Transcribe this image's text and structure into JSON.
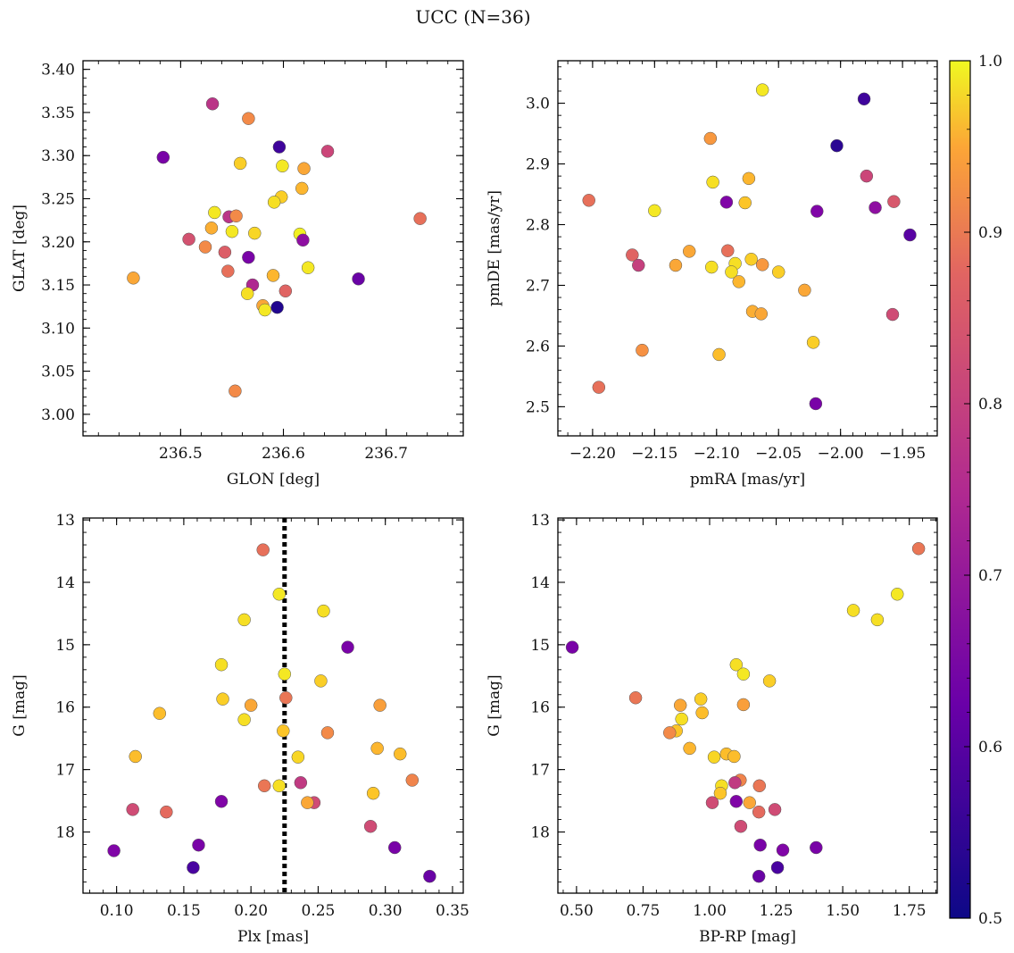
{
  "figure": {
    "title": "UCC (N=36)"
  },
  "colorbar": {
    "min": 0.5,
    "max": 1.0,
    "colormap": "plasma",
    "ticks": [
      "0.5",
      "0.6",
      "0.7",
      "0.8",
      "0.9",
      "1.0"
    ]
  },
  "colors": {
    "axis": "#000000",
    "marker_edge": "#555555",
    "vline": "#000000"
  },
  "chart_data": [
    {
      "type": "scatter",
      "xlabel": "GLON [deg]",
      "ylabel": "GLAT [deg]",
      "xlim": [
        236.405,
        236.775
      ],
      "ylim": [
        2.975,
        3.41
      ],
      "xticks": [
        236.5,
        236.6,
        236.7
      ],
      "xtick_labels": [
        "236.5",
        "236.6",
        "236.7"
      ],
      "yticks": [
        3.0,
        3.05,
        3.1,
        3.15,
        3.2,
        3.25,
        3.3,
        3.35,
        3.4
      ],
      "ytick_labels": [
        "3.00",
        "3.05",
        "3.10",
        "3.15",
        "3.20",
        "3.25",
        "3.30",
        "3.35",
        "3.40"
      ],
      "x_minor_step": 0.02,
      "y_minor_step": 0.01,
      "points": [
        {
          "x": 236.531,
          "y": 3.36,
          "c": 0.72
        },
        {
          "x": 236.566,
          "y": 3.343,
          "c": 0.86
        },
        {
          "x": 236.483,
          "y": 3.298,
          "c": 0.62
        },
        {
          "x": 236.596,
          "y": 3.31,
          "c": 0.55
        },
        {
          "x": 236.643,
          "y": 3.305,
          "c": 0.75
        },
        {
          "x": 236.558,
          "y": 3.291,
          "c": 0.95
        },
        {
          "x": 236.599,
          "y": 3.288,
          "c": 0.98
        },
        {
          "x": 236.62,
          "y": 3.285,
          "c": 0.9
        },
        {
          "x": 236.618,
          "y": 3.262,
          "c": 0.92
        },
        {
          "x": 236.598,
          "y": 3.252,
          "c": 0.95
        },
        {
          "x": 236.591,
          "y": 3.246,
          "c": 0.97
        },
        {
          "x": 236.533,
          "y": 3.234,
          "c": 0.98
        },
        {
          "x": 236.547,
          "y": 3.229,
          "c": 0.72
        },
        {
          "x": 236.554,
          "y": 3.23,
          "c": 0.86
        },
        {
          "x": 236.733,
          "y": 3.227,
          "c": 0.82
        },
        {
          "x": 236.53,
          "y": 3.216,
          "c": 0.91
        },
        {
          "x": 236.55,
          "y": 3.212,
          "c": 0.98
        },
        {
          "x": 236.572,
          "y": 3.21,
          "c": 0.96
        },
        {
          "x": 236.616,
          "y": 3.209,
          "c": 0.99
        },
        {
          "x": 236.508,
          "y": 3.203,
          "c": 0.77
        },
        {
          "x": 236.619,
          "y": 3.202,
          "c": 0.65
        },
        {
          "x": 236.524,
          "y": 3.194,
          "c": 0.86
        },
        {
          "x": 236.543,
          "y": 3.188,
          "c": 0.79
        },
        {
          "x": 236.566,
          "y": 3.182,
          "c": 0.62
        },
        {
          "x": 236.624,
          "y": 3.17,
          "c": 0.98
        },
        {
          "x": 236.546,
          "y": 3.166,
          "c": 0.82
        },
        {
          "x": 236.59,
          "y": 3.161,
          "c": 0.92
        },
        {
          "x": 236.454,
          "y": 3.158,
          "c": 0.9
        },
        {
          "x": 236.673,
          "y": 3.157,
          "c": 0.6
        },
        {
          "x": 236.57,
          "y": 3.15,
          "c": 0.7
        },
        {
          "x": 236.602,
          "y": 3.143,
          "c": 0.8
        },
        {
          "x": 236.565,
          "y": 3.14,
          "c": 0.97
        },
        {
          "x": 236.58,
          "y": 3.126,
          "c": 0.9
        },
        {
          "x": 236.594,
          "y": 3.124,
          "c": 0.52
        },
        {
          "x": 236.582,
          "y": 3.121,
          "c": 0.98
        },
        {
          "x": 236.553,
          "y": 3.027,
          "c": 0.86
        }
      ]
    },
    {
      "type": "scatter",
      "xlabel": "pmRA [mas/yr]",
      "ylabel": "pmDE [mas/yr]",
      "xlim": [
        -2.228,
        -1.922
      ],
      "ylim": [
        2.452,
        3.07
      ],
      "xticks": [
        -2.2,
        -2.15,
        -2.1,
        -2.05,
        -2.0,
        -1.95
      ],
      "xtick_labels": [
        "−2.20",
        "−2.15",
        "−2.10",
        "−2.05",
        "−2.00",
        "−1.95"
      ],
      "yticks": [
        2.5,
        2.6,
        2.7,
        2.8,
        2.9,
        3.0
      ],
      "ytick_labels": [
        "2.5",
        "2.6",
        "2.7",
        "2.8",
        "2.9",
        "3.0"
      ],
      "x_minor_step": 0.01,
      "y_minor_step": 0.02,
      "points": [
        {
          "x": -2.063,
          "y": 3.022,
          "c": 0.98
        },
        {
          "x": -1.981,
          "y": 3.007,
          "c": 0.55
        },
        {
          "x": -2.105,
          "y": 2.942,
          "c": 0.88
        },
        {
          "x": -2.003,
          "y": 2.93,
          "c": 0.53
        },
        {
          "x": -2.103,
          "y": 2.87,
          "c": 0.97
        },
        {
          "x": -2.074,
          "y": 2.876,
          "c": 0.92
        },
        {
          "x": -1.979,
          "y": 2.88,
          "c": 0.75
        },
        {
          "x": -2.203,
          "y": 2.84,
          "c": 0.82
        },
        {
          "x": -2.092,
          "y": 2.837,
          "c": 0.63
        },
        {
          "x": -2.077,
          "y": 2.836,
          "c": 0.94
        },
        {
          "x": -1.957,
          "y": 2.838,
          "c": 0.78
        },
        {
          "x": -1.972,
          "y": 2.828,
          "c": 0.65
        },
        {
          "x": -2.15,
          "y": 2.823,
          "c": 0.98
        },
        {
          "x": -2.019,
          "y": 2.822,
          "c": 0.63
        },
        {
          "x": -1.944,
          "y": 2.783,
          "c": 0.58
        },
        {
          "x": -2.122,
          "y": 2.756,
          "c": 0.9
        },
        {
          "x": -2.091,
          "y": 2.757,
          "c": 0.82
        },
        {
          "x": -2.168,
          "y": 2.75,
          "c": 0.8
        },
        {
          "x": -2.072,
          "y": 2.743,
          "c": 0.95
        },
        {
          "x": -2.085,
          "y": 2.736,
          "c": 0.97
        },
        {
          "x": -2.163,
          "y": 2.733,
          "c": 0.74
        },
        {
          "x": -2.133,
          "y": 2.733,
          "c": 0.9
        },
        {
          "x": -2.063,
          "y": 2.734,
          "c": 0.88
        },
        {
          "x": -2.104,
          "y": 2.73,
          "c": 0.97
        },
        {
          "x": -2.088,
          "y": 2.722,
          "c": 0.97
        },
        {
          "x": -2.05,
          "y": 2.722,
          "c": 0.95
        },
        {
          "x": -2.082,
          "y": 2.706,
          "c": 0.92
        },
        {
          "x": -2.029,
          "y": 2.692,
          "c": 0.9
        },
        {
          "x": -2.071,
          "y": 2.657,
          "c": 0.91
        },
        {
          "x": -2.064,
          "y": 2.653,
          "c": 0.9
        },
        {
          "x": -1.958,
          "y": 2.652,
          "c": 0.76
        },
        {
          "x": -2.022,
          "y": 2.606,
          "c": 0.95
        },
        {
          "x": -2.16,
          "y": 2.593,
          "c": 0.87
        },
        {
          "x": -2.098,
          "y": 2.586,
          "c": 0.93
        },
        {
          "x": -2.195,
          "y": 2.532,
          "c": 0.82
        },
        {
          "x": -2.02,
          "y": 2.505,
          "c": 0.62
        }
      ]
    },
    {
      "type": "scatter",
      "xlabel": "Plx [mas]",
      "ylabel": "G [mag]",
      "xlim": [
        0.075,
        0.358
      ],
      "ylim": [
        18.98,
        12.97
      ],
      "y_inverted": true,
      "xticks": [
        0.1,
        0.15,
        0.2,
        0.25,
        0.3,
        0.35
      ],
      "xtick_labels": [
        "0.10",
        "0.15",
        "0.20",
        "0.25",
        "0.30",
        "0.35"
      ],
      "yticks": [
        13,
        14,
        15,
        16,
        17,
        18
      ],
      "ytick_labels": [
        "13",
        "14",
        "15",
        "16",
        "17",
        "18"
      ],
      "x_minor_step": 0.01,
      "y_minor_step": 0.2,
      "vline": {
        "x": 0.225,
        "style": "dotted"
      },
      "points": [
        {
          "x": 0.209,
          "y": 13.48,
          "c": 0.82
        },
        {
          "x": 0.221,
          "y": 14.19,
          "c": 0.98
        },
        {
          "x": 0.254,
          "y": 14.46,
          "c": 0.97
        },
        {
          "x": 0.195,
          "y": 14.6,
          "c": 0.97
        },
        {
          "x": 0.272,
          "y": 15.04,
          "c": 0.62
        },
        {
          "x": 0.178,
          "y": 15.32,
          "c": 0.97
        },
        {
          "x": 0.225,
          "y": 15.47,
          "c": 0.98
        },
        {
          "x": 0.252,
          "y": 15.58,
          "c": 0.95
        },
        {
          "x": 0.226,
          "y": 15.85,
          "c": 0.83
        },
        {
          "x": 0.179,
          "y": 15.87,
          "c": 0.95
        },
        {
          "x": 0.2,
          "y": 15.97,
          "c": 0.9
        },
        {
          "x": 0.296,
          "y": 15.97,
          "c": 0.89
        },
        {
          "x": 0.132,
          "y": 16.1,
          "c": 0.93
        },
        {
          "x": 0.195,
          "y": 16.2,
          "c": 0.97
        },
        {
          "x": 0.224,
          "y": 16.38,
          "c": 0.94
        },
        {
          "x": 0.257,
          "y": 16.41,
          "c": 0.86
        },
        {
          "x": 0.294,
          "y": 16.66,
          "c": 0.92
        },
        {
          "x": 0.311,
          "y": 16.75,
          "c": 0.93
        },
        {
          "x": 0.114,
          "y": 16.79,
          "c": 0.93
        },
        {
          "x": 0.235,
          "y": 16.8,
          "c": 0.96
        },
        {
          "x": 0.32,
          "y": 17.17,
          "c": 0.85
        },
        {
          "x": 0.237,
          "y": 17.21,
          "c": 0.73
        },
        {
          "x": 0.21,
          "y": 17.26,
          "c": 0.83
        },
        {
          "x": 0.221,
          "y": 17.26,
          "c": 0.97
        },
        {
          "x": 0.291,
          "y": 17.38,
          "c": 0.94
        },
        {
          "x": 0.178,
          "y": 17.51,
          "c": 0.63
        },
        {
          "x": 0.247,
          "y": 17.53,
          "c": 0.76
        },
        {
          "x": 0.242,
          "y": 17.53,
          "c": 0.9
        },
        {
          "x": 0.112,
          "y": 17.64,
          "c": 0.76
        },
        {
          "x": 0.137,
          "y": 17.68,
          "c": 0.81
        },
        {
          "x": 0.289,
          "y": 17.91,
          "c": 0.76
        },
        {
          "x": 0.161,
          "y": 18.21,
          "c": 0.62
        },
        {
          "x": 0.307,
          "y": 18.25,
          "c": 0.62
        },
        {
          "x": 0.098,
          "y": 18.3,
          "c": 0.63
        },
        {
          "x": 0.157,
          "y": 18.57,
          "c": 0.56
        },
        {
          "x": 0.333,
          "y": 18.71,
          "c": 0.6
        }
      ]
    },
    {
      "type": "scatter",
      "xlabel": "BP-RP [mag]",
      "ylabel": "G [mag]",
      "xlim": [
        0.43,
        1.855
      ],
      "ylim": [
        18.98,
        12.97
      ],
      "y_inverted": true,
      "xticks": [
        0.5,
        0.75,
        1.0,
        1.25,
        1.5,
        1.75
      ],
      "xtick_labels": [
        "0.50",
        "0.75",
        "1.00",
        "1.25",
        "1.50",
        "1.75"
      ],
      "yticks": [
        13,
        14,
        15,
        16,
        17,
        18
      ],
      "ytick_labels": [
        "13",
        "14",
        "15",
        "16",
        "17",
        "18"
      ],
      "x_minor_step": 0.05,
      "y_minor_step": 0.2,
      "points": [
        {
          "x": 1.785,
          "y": 13.46,
          "c": 0.83
        },
        {
          "x": 1.705,
          "y": 14.19,
          "c": 0.98
        },
        {
          "x": 1.54,
          "y": 14.45,
          "c": 0.97
        },
        {
          "x": 1.63,
          "y": 14.6,
          "c": 0.97
        },
        {
          "x": 0.484,
          "y": 15.04,
          "c": 0.62
        },
        {
          "x": 1.1,
          "y": 15.32,
          "c": 0.97
        },
        {
          "x": 1.127,
          "y": 15.47,
          "c": 0.98
        },
        {
          "x": 1.225,
          "y": 15.58,
          "c": 0.95
        },
        {
          "x": 0.722,
          "y": 15.85,
          "c": 0.83
        },
        {
          "x": 0.967,
          "y": 15.87,
          "c": 0.95
        },
        {
          "x": 0.89,
          "y": 15.97,
          "c": 0.9
        },
        {
          "x": 1.127,
          "y": 15.96,
          "c": 0.89
        },
        {
          "x": 0.972,
          "y": 16.09,
          "c": 0.93
        },
        {
          "x": 0.895,
          "y": 16.19,
          "c": 0.97
        },
        {
          "x": 0.875,
          "y": 16.38,
          "c": 0.94
        },
        {
          "x": 0.85,
          "y": 16.41,
          "c": 0.86
        },
        {
          "x": 0.925,
          "y": 16.66,
          "c": 0.92
        },
        {
          "x": 1.063,
          "y": 16.75,
          "c": 0.93
        },
        {
          "x": 1.092,
          "y": 16.79,
          "c": 0.93
        },
        {
          "x": 1.017,
          "y": 16.8,
          "c": 0.96
        },
        {
          "x": 1.115,
          "y": 17.17,
          "c": 0.85
        },
        {
          "x": 1.095,
          "y": 17.21,
          "c": 0.73
        },
        {
          "x": 1.187,
          "y": 17.26,
          "c": 0.83
        },
        {
          "x": 1.045,
          "y": 17.26,
          "c": 0.97
        },
        {
          "x": 1.04,
          "y": 17.38,
          "c": 0.94
        },
        {
          "x": 1.1,
          "y": 17.51,
          "c": 0.63
        },
        {
          "x": 1.01,
          "y": 17.53,
          "c": 0.76
        },
        {
          "x": 1.15,
          "y": 17.53,
          "c": 0.9
        },
        {
          "x": 1.245,
          "y": 17.64,
          "c": 0.76
        },
        {
          "x": 1.185,
          "y": 17.68,
          "c": 0.81
        },
        {
          "x": 1.117,
          "y": 17.91,
          "c": 0.76
        },
        {
          "x": 1.19,
          "y": 18.21,
          "c": 0.62
        },
        {
          "x": 1.4,
          "y": 18.25,
          "c": 0.62
        },
        {
          "x": 1.275,
          "y": 18.29,
          "c": 0.63
        },
        {
          "x": 1.255,
          "y": 18.57,
          "c": 0.56
        },
        {
          "x": 1.185,
          "y": 18.71,
          "c": 0.6
        }
      ]
    }
  ]
}
